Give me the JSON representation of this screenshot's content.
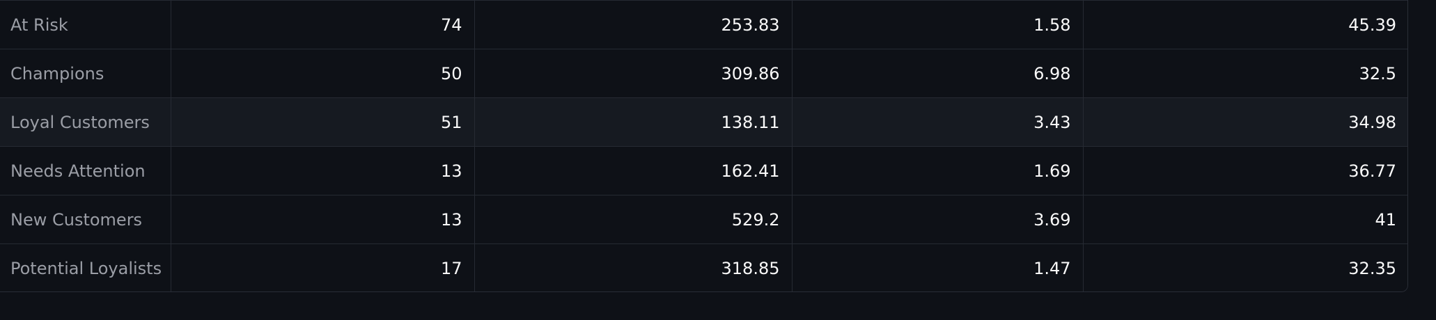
{
  "table": {
    "rows": [
      {
        "segment": "At Risk",
        "v1": "74",
        "v2": "253.83",
        "v3": "1.58",
        "v4": "45.39"
      },
      {
        "segment": "Champions",
        "v1": "50",
        "v2": "309.86",
        "v3": "6.98",
        "v4": "32.5"
      },
      {
        "segment": "Loyal Customers",
        "v1": "51",
        "v2": "138.11",
        "v3": "3.43",
        "v4": "34.98"
      },
      {
        "segment": "Needs Attention",
        "v1": "13",
        "v2": "162.41",
        "v3": "1.69",
        "v4": "36.77"
      },
      {
        "segment": "New Customers",
        "v1": "13",
        "v2": "529.2",
        "v3": "3.69",
        "v4": "41"
      },
      {
        "segment": "Potential Loyalists",
        "v1": "17",
        "v2": "318.85",
        "v3": "1.47",
        "v4": "32.35"
      }
    ],
    "hovered_row": "Loyal Customers"
  },
  "colors": {
    "background": "#0e1117",
    "row_hover": "#161a21",
    "border": "#262a33",
    "index_text": "#9b9ea6",
    "value_text": "#fafafa"
  }
}
